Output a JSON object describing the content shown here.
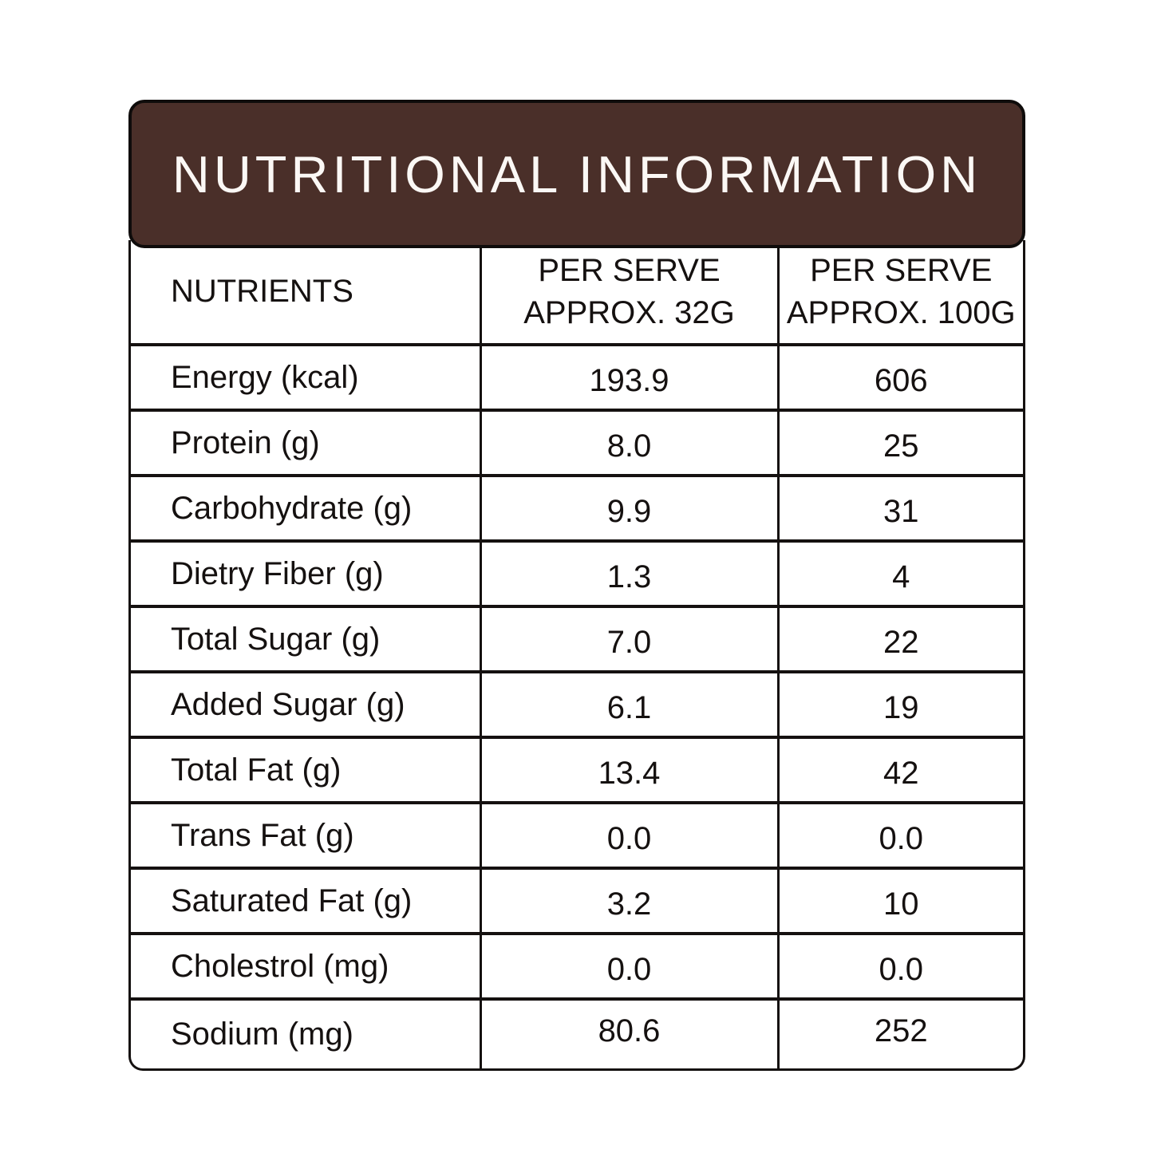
{
  "banner": {
    "title": "NUTRITIONAL INFORMATION",
    "bg_color": "#4A2F29",
    "border_color": "#0F0C0B",
    "text_color": "#FBF8F5"
  },
  "table": {
    "line_color": "#151110",
    "header": {
      "nutrients": "NUTRIENTS",
      "col2_line1": "PER SERVE",
      "col2_line2": "APPROX. 32G",
      "col3_line1": "PER SERVE",
      "col3_line2": "APPROX. 100G"
    },
    "rows": [
      {
        "label": "Energy (kcal)",
        "per_serve_32g": "193.9",
        "per_serve_100g": "606"
      },
      {
        "label": "Protein (g)",
        "per_serve_32g": "8.0",
        "per_serve_100g": "25"
      },
      {
        "label": "Carbohydrate (g)",
        "per_serve_32g": "9.9",
        "per_serve_100g": "31"
      },
      {
        "label": "Dietry Fiber (g)",
        "per_serve_32g": "1.3",
        "per_serve_100g": "4"
      },
      {
        "label": "Total Sugar (g)",
        "per_serve_32g": "7.0",
        "per_serve_100g": "22"
      },
      {
        "label": "Added Sugar (g)",
        "per_serve_32g": "6.1",
        "per_serve_100g": "19"
      },
      {
        "label": "Total Fat (g)",
        "per_serve_32g": "13.4",
        "per_serve_100g": "42"
      },
      {
        "label": "Trans Fat (g)",
        "per_serve_32g": "0.0",
        "per_serve_100g": "0.0"
      },
      {
        "label": "Saturated Fat (g)",
        "per_serve_32g": "3.2",
        "per_serve_100g": "10"
      },
      {
        "label": "Cholestrol (mg)",
        "per_serve_32g": "0.0",
        "per_serve_100g": "0.0"
      },
      {
        "label": "Sodium (mg)",
        "per_serve_32g": "80.6",
        "per_serve_100g": "252"
      }
    ]
  }
}
